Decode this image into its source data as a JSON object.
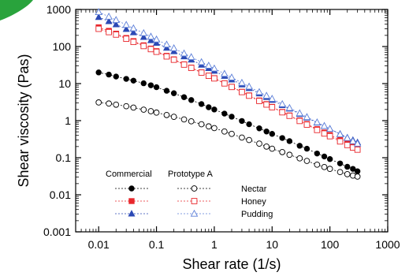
{
  "chart_data": {
    "type": "scatter",
    "xlabel": "Shear rate (1/s)",
    "ylabel": "Shear viscosity (Pas)",
    "xscale": "log",
    "yscale": "log",
    "xlim": [
      0.004,
      1000
    ],
    "ylim": [
      0.001,
      1000
    ],
    "xticks": [
      0.01,
      0.1,
      1,
      10,
      100,
      1000
    ],
    "xtick_labels": [
      "0.01",
      "0.1",
      "1",
      "10",
      "100",
      "1000"
    ],
    "yticks": [
      0.001,
      0.01,
      0.1,
      1,
      10,
      100,
      1000
    ],
    "ytick_labels": [
      "0.001",
      "0.01",
      "0.1",
      "1",
      "10",
      "100",
      "1000"
    ],
    "grid": false,
    "legend": {
      "placement": "bottom-left",
      "column_headers": [
        "Commercial",
        "Prototype A"
      ],
      "row_labels": [
        "Nectar",
        "Honey",
        "Pudding"
      ]
    },
    "x": [
      0.01,
      0.015,
      0.02,
      0.03,
      0.04,
      0.06,
      0.08,
      0.1,
      0.15,
      0.2,
      0.3,
      0.4,
      0.6,
      0.8,
      1,
      1.5,
      2,
      3,
      4,
      6,
      8,
      10,
      15,
      20,
      30,
      40,
      60,
      80,
      100,
      150,
      200,
      250,
      300
    ],
    "series": [
      {
        "group": "Commercial",
        "row": "Nectar",
        "marker": "circle",
        "filled": true,
        "color": "#000000",
        "values": [
          20,
          17.5,
          15.5,
          13.4,
          12,
          10.2,
          9,
          8,
          6.4,
          5.5,
          4.3,
          3.6,
          2.8,
          2.3,
          2,
          1.55,
          1.28,
          0.98,
          0.8,
          0.62,
          0.51,
          0.44,
          0.34,
          0.28,
          0.21,
          0.175,
          0.13,
          0.108,
          0.092,
          0.07,
          0.057,
          0.05,
          0.043
        ]
      },
      {
        "group": "Commercial",
        "row": "Honey",
        "marker": "square",
        "filled": true,
        "color": "#e8262b",
        "values": [
          330,
          265,
          222,
          170,
          140,
          108,
          88,
          75,
          56,
          45,
          33,
          27,
          20,
          16.3,
          14,
          10.2,
          8.2,
          6,
          4.8,
          3.5,
          2.8,
          2.35,
          1.72,
          1.38,
          1.01,
          0.81,
          0.59,
          0.48,
          0.41,
          0.3,
          0.24,
          0.205,
          0.18
        ]
      },
      {
        "group": "Commercial",
        "row": "Pudding",
        "marker": "triangle",
        "filled": true,
        "color": "#2b49b5",
        "values": [
          620,
          480,
          395,
          295,
          240,
          180,
          147,
          125,
          92,
          74,
          54,
          44,
          32,
          26,
          22,
          16,
          12.8,
          9.4,
          7.5,
          5.4,
          4.3,
          3.6,
          2.6,
          2.1,
          1.5,
          1.2,
          0.88,
          0.71,
          0.6,
          0.44,
          0.35,
          0.3,
          0.26
        ]
      },
      {
        "group": "Prototype A",
        "row": "Nectar",
        "marker": "circle",
        "filled": false,
        "color": "#000000",
        "values": [
          3.1,
          2.9,
          2.7,
          2.45,
          2.25,
          1.98,
          1.8,
          1.65,
          1.42,
          1.27,
          1.08,
          0.96,
          0.8,
          0.7,
          0.63,
          0.51,
          0.44,
          0.35,
          0.3,
          0.24,
          0.2,
          0.175,
          0.142,
          0.12,
          0.096,
          0.082,
          0.065,
          0.056,
          0.05,
          0.041,
          0.036,
          0.033,
          0.031
        ]
      },
      {
        "group": "Prototype A",
        "row": "Honey",
        "marker": "square",
        "filled": false,
        "color": "#e8262b",
        "values": [
          300,
          245,
          210,
          162,
          133,
          103,
          85,
          72,
          54,
          44,
          32.5,
          26.5,
          19.8,
          16.2,
          13.8,
          10.1,
          8.1,
          5.9,
          4.7,
          3.4,
          2.72,
          2.3,
          1.68,
          1.35,
          0.98,
          0.78,
          0.56,
          0.45,
          0.38,
          0.275,
          0.22,
          0.188,
          0.165
        ]
      },
      {
        "group": "Prototype A",
        "row": "Pudding",
        "marker": "triangle",
        "filled": false,
        "color": "#5b7ed8",
        "values": [
          850,
          640,
          520,
          385,
          310,
          230,
          185,
          155,
          113,
          90,
          65,
          52,
          38,
          30.5,
          25.5,
          18.4,
          14.6,
          10.5,
          8.3,
          5.9,
          4.7,
          3.9,
          2.8,
          2.2,
          1.58,
          1.25,
          0.9,
          0.72,
          0.6,
          0.43,
          0.34,
          0.28,
          0.24
        ]
      }
    ]
  }
}
